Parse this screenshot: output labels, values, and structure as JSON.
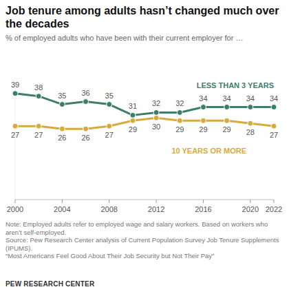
{
  "chart_data": {
    "type": "line",
    "title": "Job tenure among adults hasn’t changed much over the decades",
    "subtitle": "% of employed adults who have been with their current employer for …",
    "x": [
      2000,
      2002,
      2004,
      2006,
      2008,
      2010,
      2012,
      2014,
      2016,
      2018,
      2020,
      2022
    ],
    "xlim": [
      2000,
      2022
    ],
    "xticks": [
      2000,
      2004,
      2008,
      2012,
      2016,
      2020,
      2022
    ],
    "ylim": [
      0,
      45
    ],
    "tick_labels": "x",
    "data_labels": true,
    "marker": "circle",
    "series": [
      {
        "name": "LESS THAN 3 YEARS",
        "color": "#3d7d6b",
        "values": [
          39,
          38,
          35,
          36,
          35,
          31,
          32,
          32,
          34,
          34,
          34,
          34
        ]
      },
      {
        "name": "10 YEARS OR MORE",
        "color": "#d6ab3c",
        "values": [
          27,
          27,
          26,
          26,
          27,
          29,
          30,
          29,
          29,
          29,
          28,
          27
        ]
      }
    ],
    "notes": [
      "Note: Employed adults refer to employed wage and salary workers. Based on workers who aren’t self-employed.",
      "Source: Pew Research Center analysis of Current Population Survey Job Tenure Supplements (IPUMS).",
      "“Most Americans Feel Good About Their Job Security but Not Their Pay”"
    ],
    "credit": "PEW RESEARCH CENTER"
  }
}
